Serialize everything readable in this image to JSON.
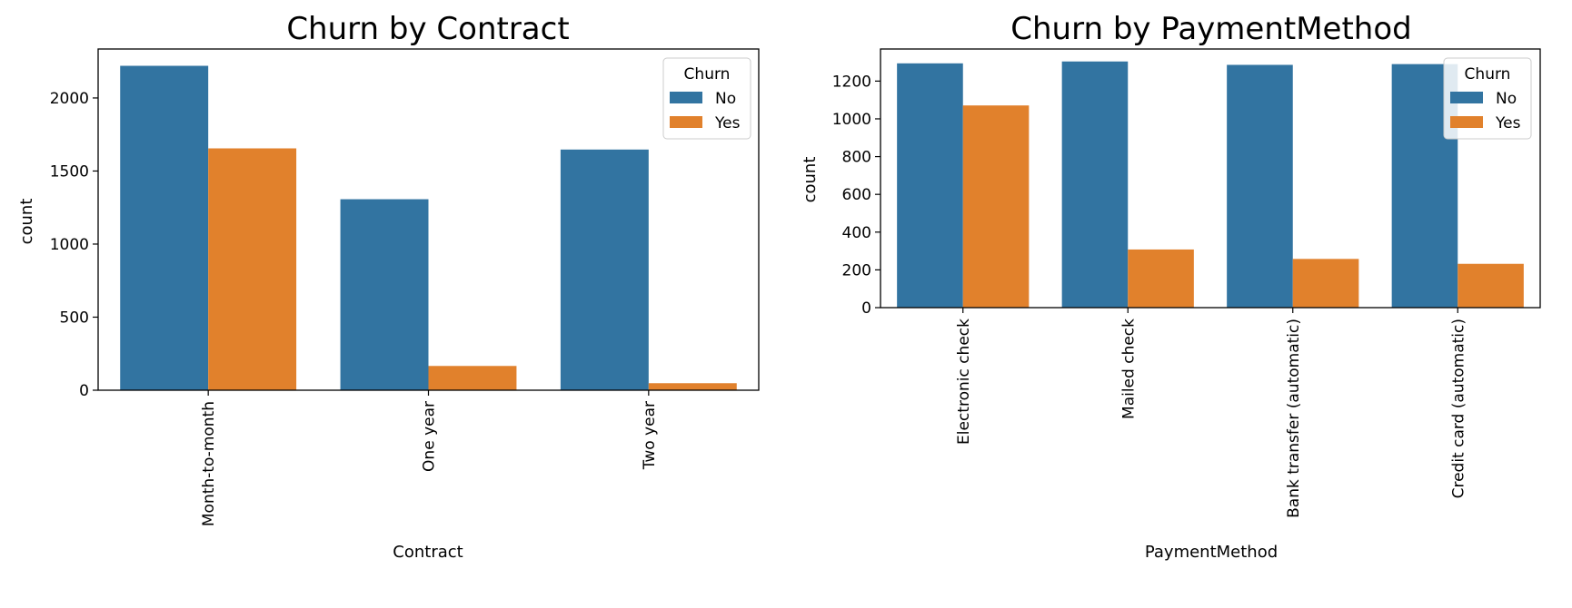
{
  "chart_data": [
    {
      "type": "bar",
      "title": "Churn by Contract",
      "xlabel": "Contract",
      "ylabel": "count",
      "categories": [
        "Month-to-month",
        "One year",
        "Two year"
      ],
      "series": [
        {
          "name": "No",
          "values": [
            2220,
            1307,
            1647
          ]
        },
        {
          "name": "Yes",
          "values": [
            1655,
            166,
            48
          ]
        }
      ],
      "ylim": [
        0,
        2335
      ],
      "yticks": [
        0,
        500,
        1000,
        1500,
        2000
      ],
      "legend": {
        "title": "Churn",
        "position": "top-right"
      },
      "grid": false
    },
    {
      "type": "bar",
      "title": "Churn by PaymentMethod",
      "xlabel": "PaymentMethod",
      "ylabel": "count",
      "categories": [
        "Electronic check",
        "Mailed check",
        "Bank transfer (automatic)",
        "Credit card (automatic)"
      ],
      "series": [
        {
          "name": "No",
          "values": [
            1294,
            1304,
            1286,
            1290
          ]
        },
        {
          "name": "Yes",
          "values": [
            1071,
            308,
            258,
            232
          ]
        }
      ],
      "ylim": [
        0,
        1370
      ],
      "yticks": [
        0,
        200,
        400,
        600,
        800,
        1000,
        1200
      ],
      "legend": {
        "title": "Churn",
        "position": "top-right"
      },
      "grid": false
    }
  ],
  "colors": {
    "No": "#3274a1",
    "Yes": "#e1812c"
  }
}
